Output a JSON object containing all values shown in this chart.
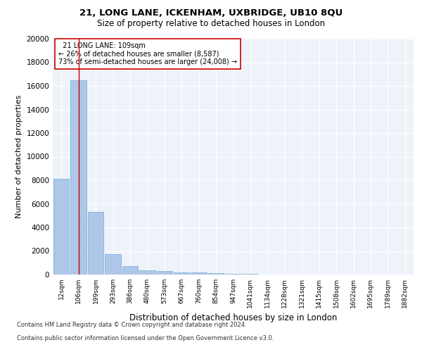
{
  "title1": "21, LONG LANE, ICKENHAM, UXBRIDGE, UB10 8QU",
  "title2": "Size of property relative to detached houses in London",
  "xlabel": "Distribution of detached houses by size in London",
  "ylabel": "Number of detached properties",
  "categories": [
    "12sqm",
    "106sqm",
    "199sqm",
    "293sqm",
    "386sqm",
    "480sqm",
    "573sqm",
    "667sqm",
    "760sqm",
    "854sqm",
    "947sqm",
    "1041sqm",
    "1134sqm",
    "1228sqm",
    "1321sqm",
    "1415sqm",
    "1508sqm",
    "1602sqm",
    "1695sqm",
    "1789sqm",
    "1882sqm"
  ],
  "values": [
    8100,
    16500,
    5300,
    1750,
    700,
    350,
    280,
    200,
    160,
    100,
    60,
    30,
    15,
    8,
    5,
    3,
    2,
    1,
    1,
    0,
    0
  ],
  "bar_color": "#aec6e8",
  "bar_edge_color": "#5a9fd4",
  "vline_x": 1,
  "vline_color": "#cc0000",
  "annotation_line1": "  21 LONG LANE: 109sqm",
  "annotation_line2": "← 26% of detached houses are smaller (8,587)",
  "annotation_line3": "73% of semi-detached houses are larger (24,008) →",
  "annotation_box_color": "#ffffff",
  "annotation_box_edge": "#cc0000",
  "ylim": [
    0,
    20000
  ],
  "yticks": [
    0,
    2000,
    4000,
    6000,
    8000,
    10000,
    12000,
    14000,
    16000,
    18000,
    20000
  ],
  "footer1": "Contains HM Land Registry data © Crown copyright and database right 2024.",
  "footer2": "Contains public sector information licensed under the Open Government Licence v3.0.",
  "bg_color": "#eef2f9",
  "grid_color": "#ffffff"
}
